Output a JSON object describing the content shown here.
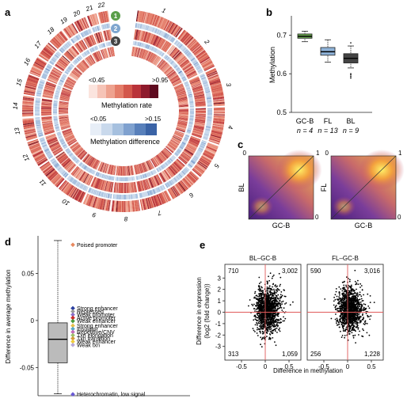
{
  "panels": {
    "a": "a",
    "b": "b",
    "c": "c",
    "d": "d",
    "e": "e"
  },
  "colors": {
    "meth_scale": [
      "#fbe4de",
      "#f6c4b7",
      "#eea28f",
      "#e47d69",
      "#d3574b",
      "#b9333a",
      "#8e1a2c",
      "#5e0a1f"
    ],
    "diff_scale": [
      "#e7eef7",
      "#c9d9ec",
      "#a6c0df",
      "#7fa1cf",
      "#5880bb",
      "#3a63a6"
    ],
    "gcb_box": "#6aa84f",
    "fl_box": "#8fb3d9",
    "bl_box": "#444444",
    "d_box": "#bbbbbb",
    "red_line": "#e05a5a"
  },
  "panel_a": {
    "chromosomes": [
      "1",
      "2",
      "3",
      "4",
      "5",
      "6",
      "7",
      "8",
      "9",
      "10",
      "11",
      "12",
      "13",
      "14",
      "15",
      "16",
      "17",
      "18",
      "19",
      "20",
      "21",
      "22"
    ],
    "ring_badges": [
      {
        "label": "1",
        "color": "#5a9e4a"
      },
      {
        "label": "2",
        "color": "#7ea6cf"
      },
      {
        "label": "3",
        "color": "#444444"
      }
    ],
    "legend_rate_low": "<0.45",
    "legend_rate_high": ">0.95",
    "legend_rate_title": "Methylation rate",
    "legend_diff_low": "<0.05",
    "legend_diff_high": ">0.15",
    "legend_diff_title": "Methylation difference"
  },
  "chart_data": [
    {
      "panel": "b",
      "type": "box",
      "ylabel": "Methylation",
      "ylim": [
        0.5,
        0.75
      ],
      "yticks": [
        "0.5",
        "0.6",
        "0.7"
      ],
      "categories": [
        "GC-B",
        "FL",
        "BL"
      ],
      "n_labels": [
        "n = 4",
        "n = 13",
        "n = 9"
      ],
      "boxes": [
        {
          "name": "GC-B",
          "min": 0.683,
          "q1": 0.692,
          "median": 0.697,
          "q3": 0.703,
          "max": 0.71,
          "outliers": []
        },
        {
          "name": "FL",
          "min": 0.63,
          "q1": 0.648,
          "median": 0.657,
          "q3": 0.668,
          "max": 0.688,
          "outliers": []
        },
        {
          "name": "BL",
          "min": 0.615,
          "q1": 0.628,
          "median": 0.64,
          "q3": 0.652,
          "max": 0.672,
          "outliers": [
            0.68,
            0.6,
            0.597,
            0.593,
            0.589
          ]
        }
      ]
    },
    {
      "panel": "c",
      "type": "heatmap",
      "plots": [
        {
          "ylabel": "BL",
          "xlabel": "GC-B",
          "x_tick_low": "0",
          "x_tick_high": "1",
          "y_tick_high": "0",
          "y_tick_low": "1"
        },
        {
          "ylabel": "FL",
          "xlabel": "GC-B",
          "x_tick_low": "0",
          "x_tick_high": "1",
          "y_tick_high": "0",
          "y_tick_low": "1"
        }
      ]
    },
    {
      "panel": "d",
      "type": "box",
      "ylabel": "Difference in average methylation",
      "ylim": [
        -0.08,
        0.09
      ],
      "yticks": [
        "-0.05",
        "0",
        "0.05"
      ],
      "box": {
        "min": -0.078,
        "q1": -0.045,
        "median": -0.02,
        "q3": -0.0025,
        "max": 0.085
      },
      "annotations": [
        {
          "label": "Poised promoter",
          "y": 0.0805,
          "color": "#e8895f"
        },
        {
          "label": "Strong enhancer",
          "y": 0.013,
          "color": "#2b3fa0"
        },
        {
          "label": "Repressed",
          "y": 0.0096,
          "color": "#9a9a9a"
        },
        {
          "label": "Weak promoter",
          "y": 0.0062,
          "color": "#8a6fc9"
        },
        {
          "label": "Active promoter",
          "y": 0.0028,
          "color": "#cc2a2a"
        },
        {
          "label": "Weak enhancer",
          "y": -0.0006,
          "color": "#4a9a3a"
        },
        {
          "label": "Strong enhancer",
          "y": -0.0055,
          "color": "#e7c04a"
        },
        {
          "label": "Insulator",
          "y": -0.0089,
          "color": "#58a8c8"
        },
        {
          "label": "Repetitive/CNV",
          "y": -0.0122,
          "color": "#c46ab8"
        },
        {
          "label": "Txn elongation",
          "y": -0.0157,
          "color": "#9bc06a"
        },
        {
          "label": "Txn transition",
          "y": -0.0191,
          "color": "#d49a3a"
        },
        {
          "label": "Weak enhancer",
          "y": -0.0225,
          "color": "#f0cc3a"
        },
        {
          "label": "Weak txn",
          "y": -0.026,
          "color": "#b8a8d6"
        },
        {
          "label": "Heterochromatin, low signal",
          "y": -0.0785,
          "color": "#6a5ad6"
        }
      ]
    },
    {
      "panel": "e",
      "type": "scatter",
      "xlabel": "Difference in methylation",
      "ylabel": "Difference in expression",
      "ylabel2": "(log2 (fold change))",
      "xlim": [
        -0.85,
        0.75
      ],
      "ylim": [
        -4.2,
        4.2
      ],
      "xticks": [
        "-0.5",
        "0",
        "0.5"
      ],
      "yticks": [
        "-3",
        "-2",
        "-1",
        "0",
        "1",
        "2",
        "3"
      ],
      "plots": [
        {
          "title": "BL–GC-B",
          "counts": {
            "top_left": "710",
            "top_right": "3,002",
            "bottom_left": "313",
            "bottom_right": "1,059"
          }
        },
        {
          "title": "FL–GC-B",
          "counts": {
            "top_left": "590",
            "top_right": "3,016",
            "bottom_left": "256",
            "bottom_right": "1,228"
          }
        }
      ]
    }
  ]
}
